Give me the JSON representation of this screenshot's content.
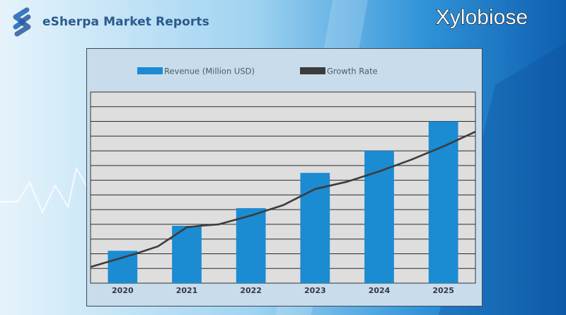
{
  "brand": {
    "name": "eSherpa Market Reports",
    "logo_icon": "esherpa-s-logo-icon"
  },
  "colors": {
    "bar": "#1b8bd2",
    "line": "#3c3c3c",
    "plot_bg": "#dedede"
  },
  "chart_data": {
    "type": "bar",
    "title": "Xylobiose",
    "categories": [
      "2020",
      "2021",
      "2022",
      "2023",
      "2024",
      "2025"
    ],
    "series": [
      {
        "name": "Revenue (Million USD)",
        "type": "bar",
        "values": [
          2.2,
          3.9,
          5.1,
          7.5,
          9.0,
          11.0
        ]
      },
      {
        "name": "Growth Rate",
        "type": "line",
        "x": [
          -0.5,
          0.2,
          0.55,
          1.0,
          1.2,
          1.5,
          2.0,
          2.5,
          3.0,
          3.5,
          4.0,
          4.5,
          5.0,
          5.5
        ],
        "values": [
          1.1,
          2.0,
          2.5,
          3.8,
          3.9,
          4.0,
          4.6,
          5.3,
          6.4,
          6.9,
          7.6,
          8.4,
          9.3,
          10.3
        ]
      }
    ],
    "ylim": [
      0,
      13
    ],
    "grid": true,
    "legend": "top",
    "xlabel": "",
    "ylabel": ""
  }
}
